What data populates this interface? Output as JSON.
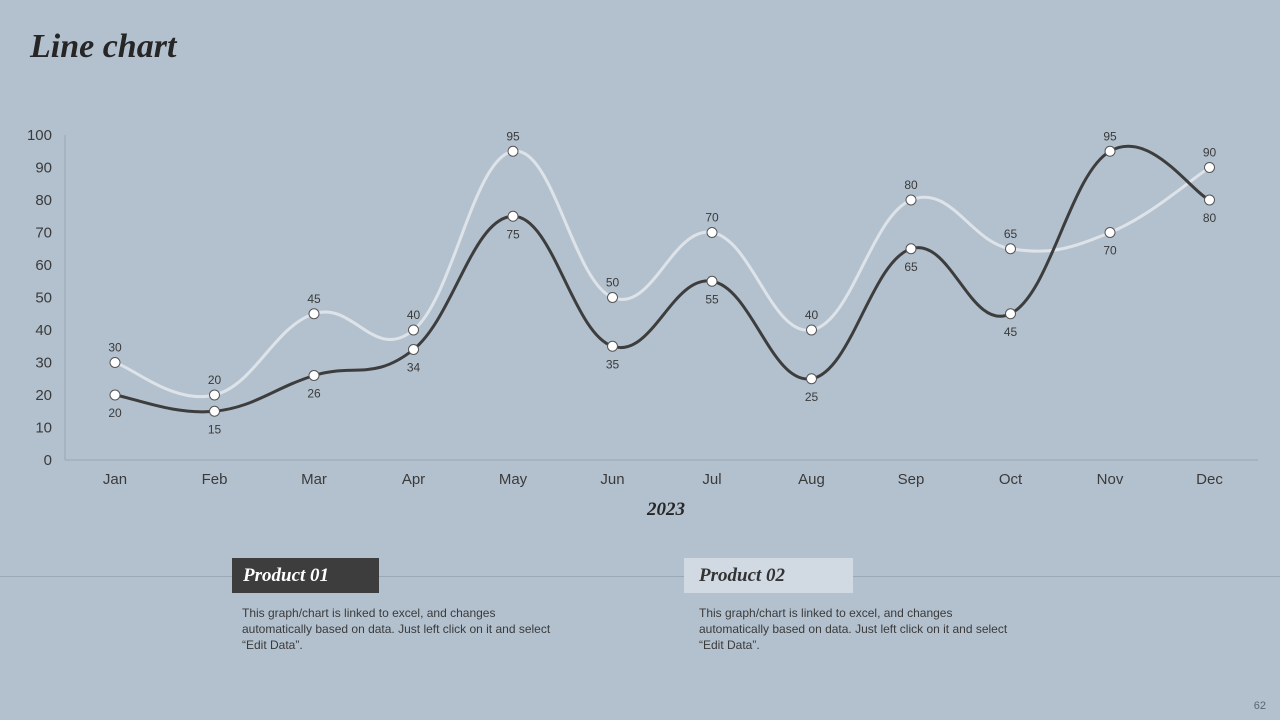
{
  "slide": {
    "title": "Line chart",
    "page_number": "62"
  },
  "legend": {
    "product1": "Product  01",
    "product2": "Product  02"
  },
  "descriptions": {
    "product1": "This graph/chart is linked to excel, and changes automatically based on data. Just left click on it and select “Edit Data”.",
    "product2": "This graph/chart is linked to excel, and changes automatically based on data. Just left click on it and select “Edit Data”."
  },
  "colors": {
    "background": "#b3c1cf",
    "product1": "#3d3d3d",
    "product2": "#dde3e9"
  },
  "chart_data": {
    "type": "line",
    "categories": [
      "Jan",
      "Feb",
      "Mar",
      "Apr",
      "May",
      "Jun",
      "Jul",
      "Aug",
      "Sep",
      "Oct",
      "Nov",
      "Dec"
    ],
    "xlabel": "2023",
    "ylabel": "",
    "ylim": [
      0,
      100
    ],
    "yticks": [
      0,
      10,
      20,
      30,
      40,
      50,
      60,
      70,
      80,
      90,
      100
    ],
    "grid": false,
    "smooth": true,
    "series": [
      {
        "name": "Product  01",
        "color": "#3d3d3d",
        "values": [
          20,
          15,
          26,
          34,
          75,
          35,
          55,
          25,
          65,
          45,
          95,
          80
        ]
      },
      {
        "name": "Product  02",
        "color": "#dde3e9",
        "values": [
          30,
          20,
          45,
          40,
          95,
          50,
          70,
          40,
          80,
          65,
          70,
          90
        ]
      }
    ]
  }
}
